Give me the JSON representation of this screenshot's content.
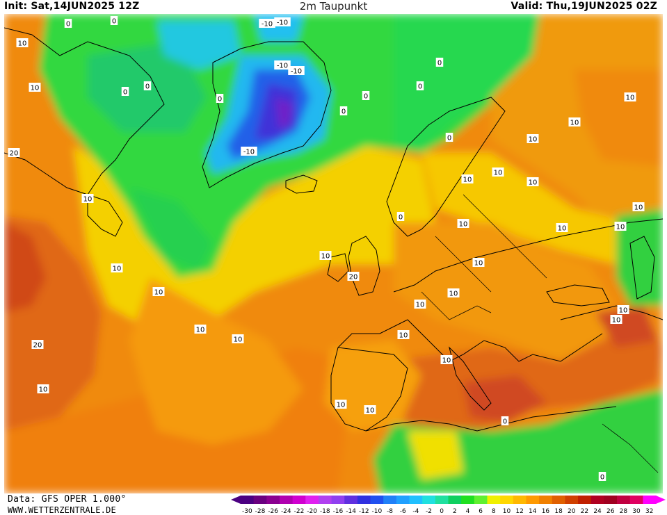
{
  "header": {
    "init": "Init: Sat,14JUN2025 12Z",
    "title": "2m Taupunkt",
    "valid": "Valid: Thu,19JUN2025 02Z"
  },
  "footer": {
    "source": "Data: GFS OPER 1.000°",
    "site": "WWW.WETTERZENTRALE.DE"
  },
  "colorbar": {
    "ticks": [
      "-30",
      "-28",
      "-26",
      "-24",
      "-22",
      "-20",
      "-18",
      "-16",
      "-14",
      "-12",
      "-10",
      "-8",
      "-6",
      "-4",
      "-2",
      "0",
      "2",
      "4",
      "6",
      "8",
      "10",
      "12",
      "14",
      "16",
      "18",
      "20",
      "22",
      "24",
      "26",
      "28",
      "30",
      "32"
    ],
    "colors": [
      "#4b0082",
      "#6a0080",
      "#8a0090",
      "#b000b0",
      "#d000d0",
      "#e020f0",
      "#b040f0",
      "#9040f0",
      "#6030e0",
      "#3030e0",
      "#2050f0",
      "#2080f8",
      "#20a0ff",
      "#20c0ff",
      "#20e0e0",
      "#20e0a0",
      "#10d060",
      "#20e020",
      "#60f030",
      "#f0f000",
      "#ffd700",
      "#ffb800",
      "#ff9a00",
      "#f08000",
      "#e06000",
      "#d04000",
      "#c02000",
      "#b00020",
      "#a00020",
      "#c00040",
      "#e00060",
      "#ff00ff"
    ]
  },
  "contour_labels": [
    {
      "text": "0",
      "type": "zero"
    },
    {
      "text": "0",
      "type": "zero"
    },
    {
      "text": "-10",
      "type": "neg"
    },
    {
      "text": "-10",
      "type": "neg"
    },
    {
      "text": "-10",
      "type": "neg"
    },
    {
      "text": "-10",
      "type": "neg"
    },
    {
      "text": "-10",
      "type": "neg"
    },
    {
      "text": "10",
      "type": "pos"
    },
    {
      "text": "10",
      "type": "pos"
    },
    {
      "text": "10",
      "type": "pos"
    },
    {
      "text": "20",
      "type": "pos"
    },
    {
      "text": "20",
      "type": "pos"
    },
    {
      "text": "10",
      "type": "pos"
    },
    {
      "text": "10",
      "type": "pos"
    },
    {
      "text": "10",
      "type": "pos"
    },
    {
      "text": "10",
      "type": "pos"
    },
    {
      "text": "10",
      "type": "pos"
    },
    {
      "text": "20",
      "type": "pos"
    },
    {
      "text": "10",
      "type": "pos"
    },
    {
      "text": "10",
      "type": "pos"
    },
    {
      "text": "10",
      "type": "pos"
    },
    {
      "text": "10",
      "type": "pos"
    },
    {
      "text": "10",
      "type": "pos"
    },
    {
      "text": "10",
      "type": "pos"
    },
    {
      "text": "10",
      "type": "pos"
    },
    {
      "text": "10",
      "type": "pos"
    },
    {
      "text": "10",
      "type": "pos"
    },
    {
      "text": "10",
      "type": "pos"
    },
    {
      "text": "10",
      "type": "pos"
    },
    {
      "text": "10",
      "type": "pos"
    },
    {
      "text": "0",
      "type": "zero"
    },
    {
      "text": "0",
      "type": "zero"
    },
    {
      "text": "0",
      "type": "zero"
    },
    {
      "text": "0",
      "type": "zero"
    },
    {
      "text": "0",
      "type": "zero"
    },
    {
      "text": "0",
      "type": "zero"
    },
    {
      "text": "0",
      "type": "zero"
    },
    {
      "text": "0",
      "type": "zero"
    },
    {
      "text": "0",
      "type": "zero"
    },
    {
      "text": "10",
      "type": "pos"
    },
    {
      "text": "10",
      "type": "pos"
    },
    {
      "text": "10",
      "type": "pos"
    },
    {
      "text": "10",
      "type": "pos"
    },
    {
      "text": "10",
      "type": "pos"
    },
    {
      "text": "10",
      "type": "pos"
    },
    {
      "text": "10",
      "type": "pos"
    },
    {
      "text": "10",
      "type": "pos"
    },
    {
      "text": "0",
      "type": "zero"
    },
    {
      "text": "0",
      "type": "zero"
    }
  ]
}
